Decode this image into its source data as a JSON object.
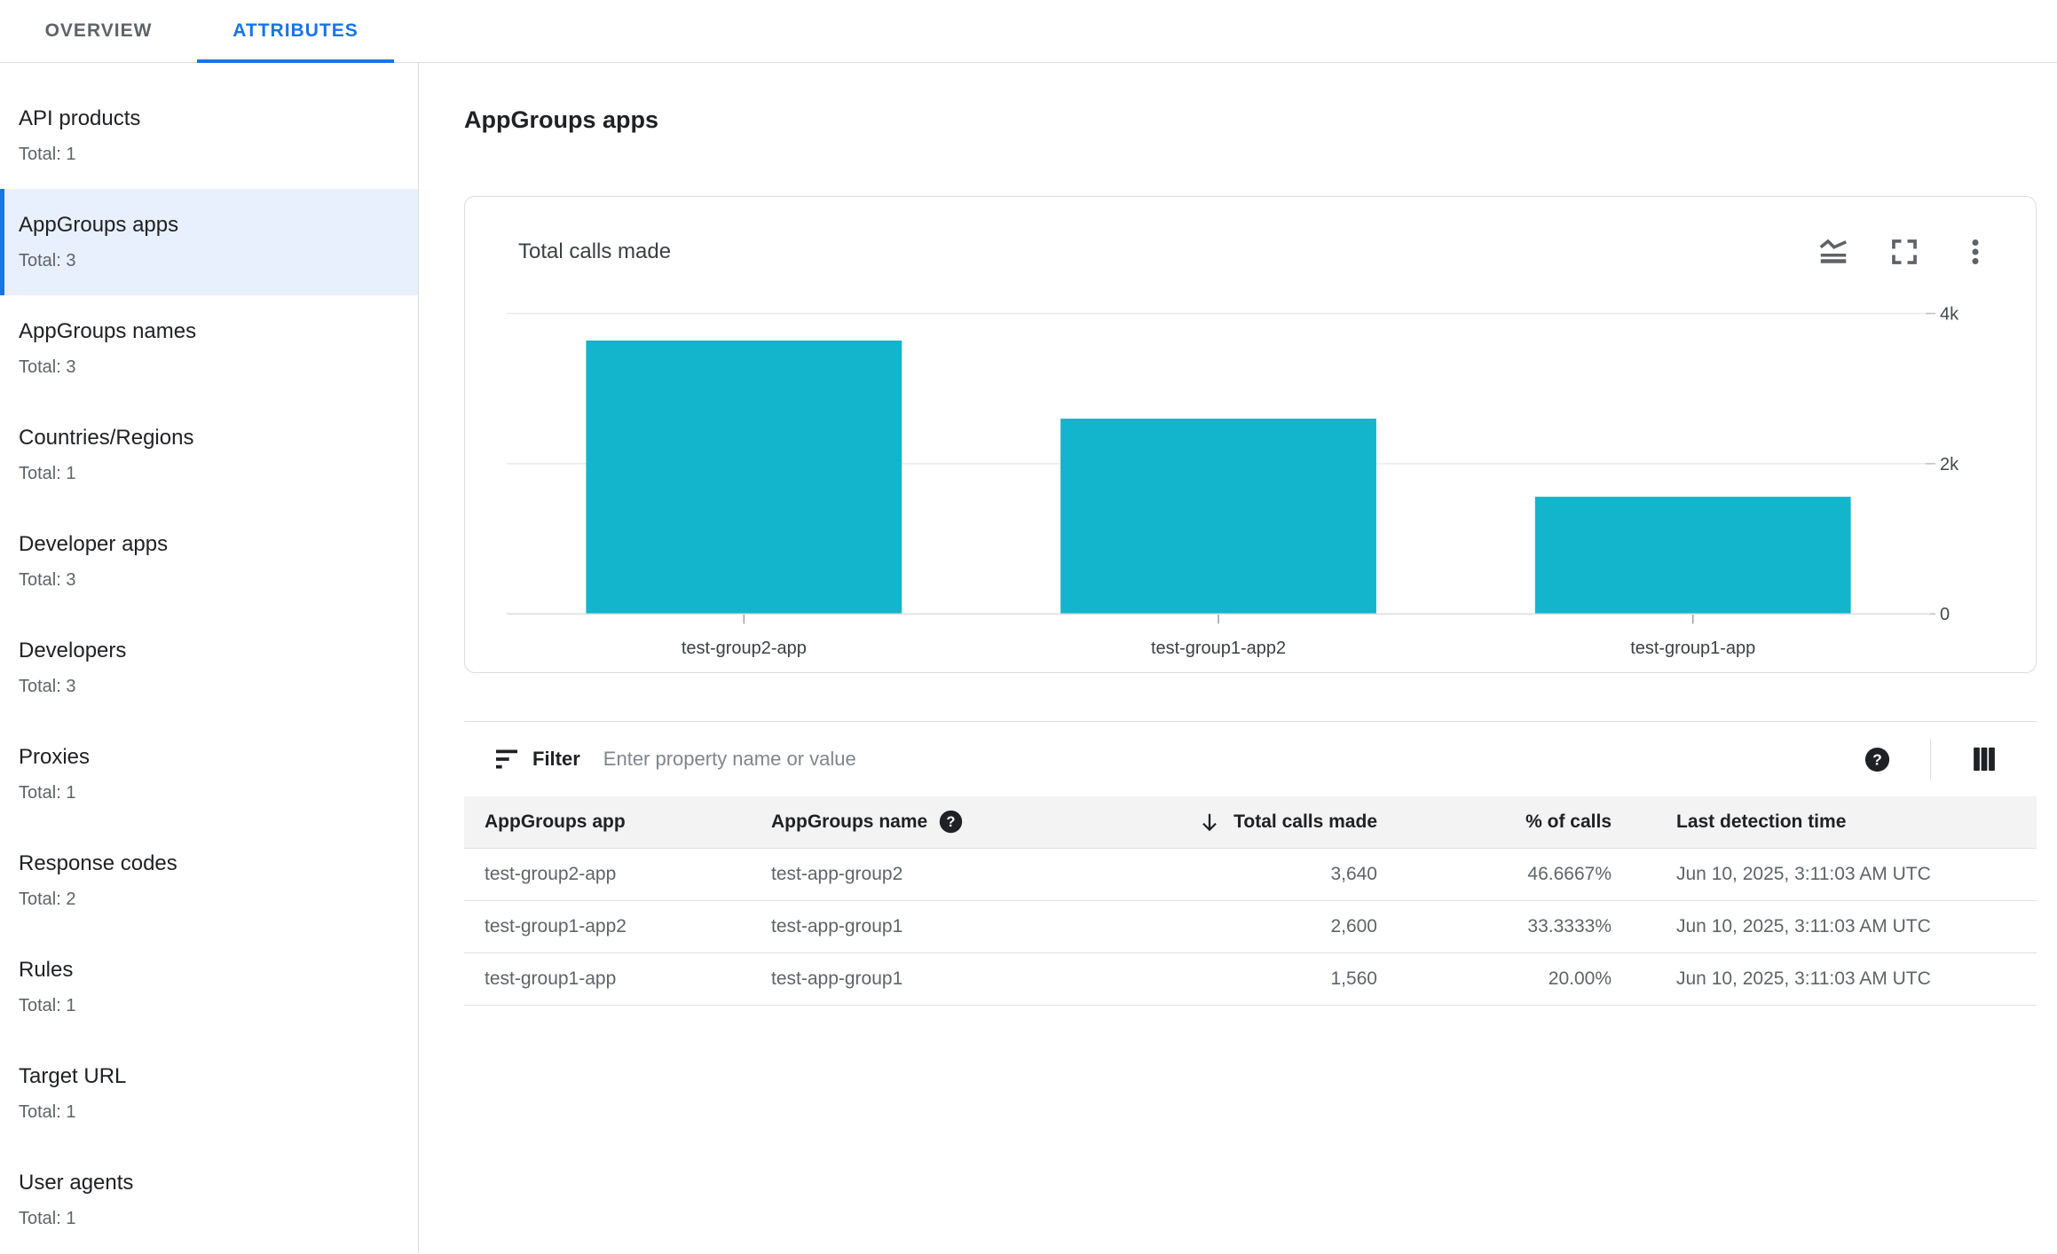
{
  "tabs": [
    {
      "label": "OVERVIEW",
      "active": false
    },
    {
      "label": "ATTRIBUTES",
      "active": true
    }
  ],
  "sidebar": {
    "items": [
      {
        "label": "API products",
        "total": "Total: 1",
        "selected": false
      },
      {
        "label": "AppGroups apps",
        "total": "Total: 3",
        "selected": true
      },
      {
        "label": "AppGroups names",
        "total": "Total: 3",
        "selected": false
      },
      {
        "label": "Countries/Regions",
        "total": "Total: 1",
        "selected": false
      },
      {
        "label": "Developer apps",
        "total": "Total: 3",
        "selected": false
      },
      {
        "label": "Developers",
        "total": "Total: 3",
        "selected": false
      },
      {
        "label": "Proxies",
        "total": "Total: 1",
        "selected": false
      },
      {
        "label": "Response codes",
        "total": "Total: 2",
        "selected": false
      },
      {
        "label": "Rules",
        "total": "Total: 1",
        "selected": false
      },
      {
        "label": "Target URL",
        "total": "Total: 1",
        "selected": false
      },
      {
        "label": "User agents",
        "total": "Total: 1",
        "selected": false
      }
    ]
  },
  "main": {
    "title": "AppGroups apps",
    "card": {
      "icons": [
        "stacked-line-chart-icon",
        "fullscreen-icon",
        "more-vert-icon"
      ]
    },
    "filter": {
      "icon": "sort-filter-icon",
      "label": "Filter",
      "placeholder": "Enter property name or value",
      "help_icon": "help-icon",
      "columns_icon": "view-columns-icon"
    },
    "table": {
      "columns": [
        {
          "label": "AppGroups app",
          "align": "left",
          "help_icon": false,
          "sort": null
        },
        {
          "label": "AppGroups name",
          "align": "left",
          "help_icon": true,
          "sort": null
        },
        {
          "label": "Total calls made",
          "align": "right",
          "help_icon": false,
          "sort": "desc"
        },
        {
          "label": "% of calls",
          "align": "right",
          "help_icon": false,
          "sort": null
        },
        {
          "label": "Last detection time",
          "align": "left",
          "help_icon": false,
          "sort": null
        }
      ],
      "rows": [
        [
          "test-group2-app",
          "test-app-group2",
          "3,640",
          "46.6667%",
          "Jun 10, 2025, 3:11:03 AM UTC"
        ],
        [
          "test-group1-app2",
          "test-app-group1",
          "2,600",
          "33.3333%",
          "Jun 10, 2025, 3:11:03 AM UTC"
        ],
        [
          "test-group1-app",
          "test-app-group1",
          "1,560",
          "20.00%",
          "Jun 10, 2025, 3:11:03 AM UTC"
        ]
      ]
    }
  },
  "chart_data": {
    "type": "bar",
    "title": "Total calls made",
    "categories": [
      "test-group2-app",
      "test-group1-app2",
      "test-group1-app"
    ],
    "values": [
      3640,
      2600,
      1560
    ],
    "xlabel": "",
    "ylabel": "",
    "ylim": [
      0,
      4000
    ],
    "yticks": [
      {
        "value": 0,
        "label": "0"
      },
      {
        "value": 2000,
        "label": "2k"
      },
      {
        "value": 4000,
        "label": "4k"
      }
    ],
    "grid": true,
    "legend": false,
    "bar_color": "#12b5cb"
  },
  "colors": {
    "accent_blue": "#1a73e8",
    "selected_item_bg": "#e8f0fe",
    "bar_teal": "#12b5cb",
    "border": "#dadce0",
    "table_header_bg": "#f3f3f3"
  }
}
